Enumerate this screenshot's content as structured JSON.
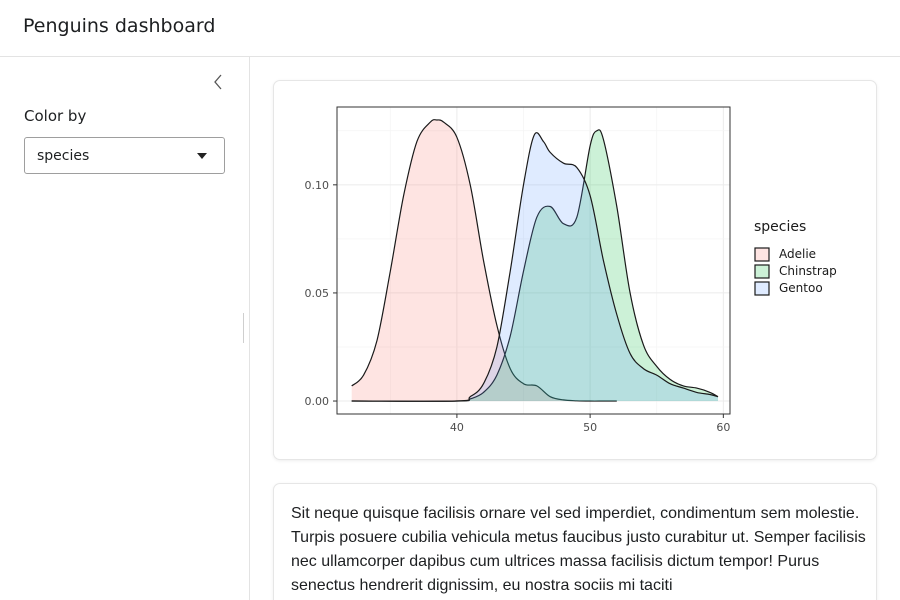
{
  "app": {
    "title": "Penguins dashboard"
  },
  "sidebar": {
    "collapse_icon": "chevron-left-icon",
    "control_label": "Color by",
    "select_value": "species"
  },
  "main": {
    "paragraph": "Sit neque quisque facilisis ornare vel sed imperdiet, condimentum sem molestie. Turpis posuere cubilia vehicula metus faucibus justo curabitur ut. Semper facilisis nec ullamcorper dapibus cum ultrices massa facilisis dictum tempor! Purus senectus hendrerit dignissim, eu nostra sociis mi taciti"
  },
  "chart_data": {
    "type": "area",
    "subtype": "density",
    "legend": {
      "title": "species",
      "placement": "right"
    },
    "xlim": [
      31,
      60.5
    ],
    "ylim": [
      -0.006,
      0.136
    ],
    "x_ticks": [
      40,
      50,
      60
    ],
    "y_ticks": [
      0.0,
      0.05,
      0.1
    ],
    "y_tick_labels": [
      "0.00",
      "0.05",
      "0.10"
    ],
    "grid": true,
    "series": [
      {
        "name": "Adelie",
        "fill": "#F8766D",
        "x": [
          32.1,
          33,
          34,
          35,
          36,
          37,
          38,
          38.5,
          39,
          40,
          41,
          42,
          43,
          44,
          45,
          46,
          47,
          48,
          49,
          50,
          51,
          52
        ],
        "y": [
          0.007,
          0.012,
          0.028,
          0.06,
          0.095,
          0.12,
          0.129,
          0.13,
          0.129,
          0.122,
          0.1,
          0.065,
          0.035,
          0.015,
          0.008,
          0.007,
          0.002,
          0.0005,
          0.0001,
          0,
          0,
          0
        ]
      },
      {
        "name": "Chinstrap",
        "fill": "#00BA38",
        "x": [
          32.1,
          40,
          41,
          42,
          43,
          44,
          45,
          46,
          47,
          48,
          49,
          50,
          50.5,
          51,
          52,
          53,
          54,
          55,
          56,
          57,
          58,
          59,
          59.6
        ],
        "y": [
          0,
          0,
          0.001,
          0.004,
          0.012,
          0.03,
          0.06,
          0.085,
          0.09,
          0.082,
          0.085,
          0.118,
          0.125,
          0.121,
          0.09,
          0.05,
          0.026,
          0.016,
          0.01,
          0.007,
          0.006,
          0.004,
          0.002
        ]
      },
      {
        "name": "Gentoo",
        "fill": "#619CFF",
        "x": [
          32.1,
          40,
          41,
          42,
          43,
          44,
          45,
          45.8,
          46.5,
          47,
          48,
          49,
          50,
          51,
          52,
          53,
          54,
          55,
          56,
          57,
          58,
          59,
          59.6
        ],
        "y": [
          0,
          0,
          0.002,
          0.008,
          0.025,
          0.06,
          0.1,
          0.123,
          0.12,
          0.115,
          0.11,
          0.108,
          0.095,
          0.065,
          0.04,
          0.022,
          0.015,
          0.012,
          0.008,
          0.006,
          0.004,
          0.003,
          0.002
        ]
      }
    ]
  }
}
